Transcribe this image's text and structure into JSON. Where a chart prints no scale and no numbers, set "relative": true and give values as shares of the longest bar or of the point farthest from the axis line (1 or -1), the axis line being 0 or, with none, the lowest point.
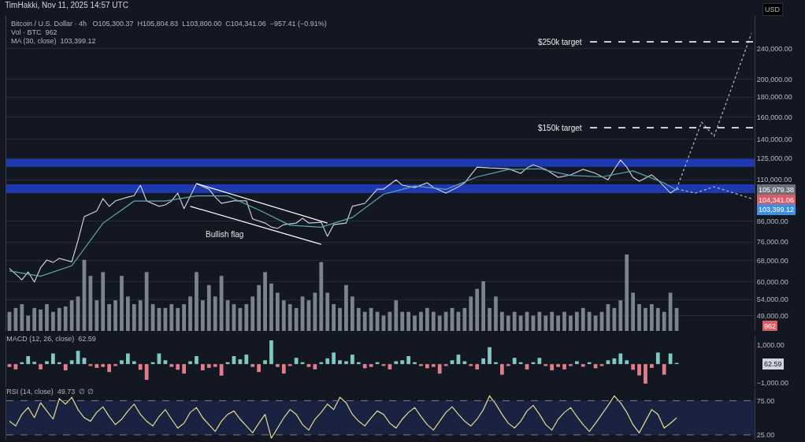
{
  "chart_data": [
    {
      "type": "line",
      "title": "TimHakki, Nov 11, 2025 14:57 UTC",
      "log": true,
      "grid": "y",
      "tick_labels": "y",
      "categories": [
        null,
        null,
        null,
        null,
        null,
        null,
        null,
        null,
        null,
        null,
        null,
        null,
        null,
        null,
        null,
        null,
        null,
        null,
        null,
        null,
        null,
        null,
        null,
        null,
        null,
        null,
        null,
        null,
        null,
        null,
        null,
        null,
        null,
        null,
        null,
        null,
        null,
        null,
        null,
        null,
        null,
        null,
        null,
        null,
        null,
        null,
        null,
        null,
        null,
        null,
        null,
        null,
        null,
        null,
        null,
        null,
        null,
        null,
        null,
        null,
        null,
        null,
        null,
        null,
        null,
        null,
        null,
        null,
        null,
        null,
        null,
        null,
        null,
        null,
        null,
        null,
        null,
        null,
        null,
        null,
        null,
        null,
        null,
        null,
        null,
        null,
        null,
        null,
        null,
        null,
        null,
        null,
        null,
        null,
        null,
        null,
        null,
        null,
        null,
        null,
        null,
        null,
        null,
        null,
        null,
        null,
        null,
        null,
        null,
        null,
        null,
        null,
        null,
        null,
        null,
        null,
        null,
        null,
        null,
        null
      ],
      "ylim": [
        44800,
        292000
      ],
      "yticks": [
        {
          "value": 49000,
          "label": "49,000.00"
        },
        {
          "value": 54000,
          "label": "54,000.00"
        },
        {
          "value": 60000,
          "label": "60,000.00"
        },
        {
          "value": 68000,
          "label": "68,000.00"
        },
        {
          "value": 76000,
          "label": "76,000.00"
        },
        {
          "value": 86000,
          "label": "86,000.00"
        },
        {
          "value": 110000,
          "label": "110,000.00"
        },
        {
          "value": 125000,
          "label": "125,000.00"
        },
        {
          "value": 140000,
          "label": "140,000.00"
        },
        {
          "value": 160000,
          "label": "160,000.00"
        },
        {
          "value": 180000,
          "label": "180,000.00"
        },
        {
          "value": 200000,
          "label": "200,000.00"
        },
        {
          "value": 240000,
          "label": "240,000.00"
        }
      ],
      "series": [
        {
          "color": "#c9ccd4",
          "values": [
            65000,
            null,
            60700,
            63600,
            59900,
            65200,
            68300,
            67300,
            69000,
            null,
            67600,
            76700,
            88400,
            null,
            91400,
            98400,
            94000,
            97100,
            null,
            99300,
            100200,
            106600,
            97100,
            null,
            94000,
            94800,
            97100,
            101700,
            92600,
            null,
            107600,
            null,
            104100,
            99300,
            95700,
            null,
            97100,
            null,
            97100,
            87200,
            null,
            85100,
            83100,
            82400,
            84300,
            null,
            85100,
            87600,
            85100,
            null,
            85500,
            78600,
            84300,
            null,
            85100,
            94000,
            null,
            95700,
            null,
            104100,
            104100,
            null,
            110000,
            106600,
            null,
            105100,
            null,
            108100,
            105100,
            null,
            101700,
            null,
            105600,
            108100,
            null,
            118700,
            null,
            118100,
            null,
            null,
            117600,
            null,
            114400,
            118100,
            120400,
            null,
            117100,
            null,
            111700,
            null,
            113300,
            null,
            117100,
            null,
            114400,
            null,
            110000,
            117100,
            123800,
            118700,
            111700,
            109100,
            null,
            113300,
            110000,
            null,
            101700,
            104300,
            null,
            null,
            null,
            null,
            null,
            null,
            null,
            null,
            null,
            null,
            null,
            null
          ]
        },
        {
          "color": "#5fa8b0",
          "values": [
            64000,
            null,
            null,
            null,
            null,
            62000,
            null,
            null,
            null,
            null,
            66000,
            null,
            null,
            null,
            null,
            85000,
            null,
            null,
            null,
            null,
            97000,
            null,
            null,
            null,
            null,
            97000,
            null,
            null,
            null,
            null,
            100000,
            null,
            null,
            null,
            null,
            100000,
            null,
            null,
            null,
            null,
            92000,
            null,
            null,
            null,
            null,
            84000,
            null,
            null,
            null,
            null,
            83000,
            null,
            null,
            null,
            null,
            88000,
            null,
            null,
            null,
            null,
            101000,
            null,
            null,
            null,
            null,
            106000,
            null,
            null,
            null,
            null,
            104000,
            null,
            null,
            null,
            null,
            112000,
            null,
            null,
            null,
            null,
            117000,
            null,
            null,
            null,
            null,
            117500,
            null,
            null,
            null,
            null,
            113000,
            null,
            null,
            null,
            null,
            112000,
            null,
            null,
            null,
            null,
            116000,
            null,
            null,
            null,
            null,
            108000,
            null,
            103400,
            null,
            null,
            null,
            null,
            null,
            null,
            null,
            null,
            null,
            null,
            null,
            null
          ]
        },
        {
          "color": "#ffffff",
          "values": [
            null,
            null,
            null,
            null,
            null,
            null,
            null,
            null,
            null,
            null,
            null,
            null,
            null,
            null,
            null,
            null,
            null,
            null,
            null,
            null,
            null,
            null,
            null,
            null,
            null,
            null,
            null,
            null,
            null,
            null,
            107600,
            null,
            null,
            null,
            null,
            null,
            null,
            null,
            null,
            null,
            null,
            null,
            null,
            null,
            null,
            null,
            null,
            null,
            null,
            null,
            null,
            85100,
            null,
            null,
            null,
            null,
            null,
            null,
            null,
            null,
            null,
            null,
            null,
            null,
            null,
            null,
            null,
            null,
            null,
            null,
            null,
            null,
            null,
            null,
            null,
            null,
            null,
            null,
            null,
            null,
            null,
            null,
            null,
            null,
            null,
            null,
            null,
            null,
            null,
            null,
            null,
            null,
            null,
            null,
            null,
            null,
            null,
            null,
            null,
            null,
            null,
            null,
            null,
            null,
            null,
            null,
            null,
            null,
            null,
            null,
            null,
            null,
            null,
            null,
            null,
            null,
            null,
            null,
            null,
            null
          ]
        },
        {
          "color": "#ffffff",
          "values": [
            null,
            null,
            null,
            null,
            null,
            null,
            null,
            null,
            null,
            null,
            null,
            null,
            null,
            null,
            null,
            null,
            null,
            null,
            null,
            null,
            null,
            null,
            null,
            null,
            null,
            null,
            null,
            null,
            null,
            94000,
            null,
            null,
            null,
            null,
            null,
            null,
            null,
            null,
            null,
            null,
            null,
            null,
            null,
            null,
            null,
            null,
            null,
            null,
            null,
            null,
            75000,
            null,
            null,
            null,
            null,
            null,
            null,
            null,
            null,
            null,
            null,
            null,
            null,
            null,
            null,
            null,
            null,
            null,
            null,
            null,
            null,
            null,
            null,
            null,
            null,
            null,
            null,
            null,
            null,
            null,
            null,
            null,
            null,
            null,
            null,
            null,
            null,
            null,
            null,
            null,
            null,
            null,
            null,
            null,
            null,
            null,
            null,
            null,
            null,
            null,
            null,
            null,
            null,
            null,
            null,
            null,
            null,
            null,
            null,
            null,
            null,
            null,
            null,
            null,
            null,
            null,
            null,
            null,
            null,
            null
          ]
        },
        {
          "color": "#b8bcc6",
          "line_style": "dotted",
          "values": [
            null,
            null,
            null,
            null,
            null,
            null,
            null,
            null,
            null,
            null,
            null,
            null,
            null,
            null,
            null,
            null,
            null,
            null,
            null,
            null,
            null,
            null,
            null,
            null,
            null,
            null,
            null,
            null,
            null,
            null,
            null,
            null,
            null,
            null,
            null,
            null,
            null,
            null,
            null,
            null,
            null,
            null,
            null,
            null,
            null,
            null,
            null,
            null,
            null,
            null,
            null,
            null,
            null,
            null,
            null,
            null,
            null,
            null,
            null,
            null,
            null,
            null,
            null,
            null,
            null,
            null,
            null,
            null,
            null,
            null,
            null,
            null,
            null,
            null,
            null,
            null,
            null,
            null,
            null,
            null,
            null,
            null,
            null,
            null,
            null,
            null,
            null,
            null,
            null,
            null,
            null,
            null,
            null,
            null,
            null,
            null,
            null,
            null,
            null,
            null,
            null,
            null,
            null,
            null,
            null,
            null,
            null,
            104300,
            null,
            null,
            null,
            155000,
            null,
            142600,
            null,
            null,
            null,
            null,
            null,
            263000
          ]
        },
        {
          "color": "#b8bcc6",
          "line_style": "dotted",
          "values": [
            null,
            null,
            null,
            null,
            null,
            null,
            null,
            null,
            null,
            null,
            null,
            null,
            null,
            null,
            null,
            null,
            null,
            null,
            null,
            null,
            null,
            null,
            null,
            null,
            null,
            null,
            null,
            null,
            null,
            null,
            null,
            null,
            null,
            null,
            null,
            null,
            null,
            null,
            null,
            null,
            null,
            null,
            null,
            null,
            null,
            null,
            null,
            null,
            null,
            null,
            null,
            null,
            null,
            null,
            null,
            null,
            null,
            null,
            null,
            null,
            null,
            null,
            null,
            null,
            null,
            null,
            null,
            null,
            null,
            null,
            null,
            null,
            null,
            null,
            null,
            null,
            null,
            null,
            null,
            null,
            null,
            null,
            null,
            null,
            null,
            null,
            null,
            null,
            null,
            null,
            null,
            null,
            null,
            null,
            null,
            null,
            null,
            null,
            null,
            null,
            null,
            null,
            null,
            null,
            null,
            null,
            null,
            104300,
            null,
            null,
            101700,
            null,
            null,
            105600,
            null,
            null,
            null,
            null,
            null,
            98400
          ]
        }
      ],
      "bands": [
        {
          "axis": "y",
          "from": 101700,
          "to": 107100,
          "color": "#2140c8"
        },
        {
          "axis": "y",
          "from": 118900,
          "to": 125200,
          "color": "#2140c8"
        }
      ],
      "ref_lines": [
        {
          "axis": "y",
          "value": 250000,
          "label": "$250k target",
          "color": "#e8e8e8",
          "line_style": "dashed"
        },
        {
          "axis": "y",
          "value": 150000,
          "label": "$150k target",
          "color": "#e8e8e8",
          "line_style": "dashed"
        }
      ],
      "annotations": [
        "Bitcoin / U.S. Dollar · 4h   O105,300.37  H105,804.83  L103,800.00  C104,341.06  −957.41 (−0.91%)",
        "Vol · BTC  962",
        "MA (30, close)  103,399.12",
        "USD",
        "Bullish flag",
        "105,979.38",
        "104,341.06",
        "103,399.12"
      ]
    },
    {
      "type": "bar",
      "relative": true,
      "tick_labels": false,
      "color": "#7d8290",
      "categories": [
        null,
        null,
        null,
        null,
        null,
        null,
        null,
        null,
        null,
        null,
        null,
        null,
        null,
        null,
        null,
        null,
        null,
        null,
        null,
        null,
        null,
        null,
        null,
        null,
        null,
        null,
        null,
        null,
        null,
        null,
        null,
        null,
        null,
        null,
        null,
        null,
        null,
        null,
        null,
        null,
        null,
        null,
        null,
        null,
        null,
        null,
        null,
        null,
        null,
        null,
        null,
        null,
        null,
        null,
        null,
        null,
        null,
        null,
        null,
        null,
        null,
        null,
        null,
        null,
        null,
        null,
        null,
        null,
        null,
        null,
        null,
        null,
        null,
        null,
        null,
        null,
        null,
        null,
        null,
        null,
        null,
        null,
        null,
        null,
        null,
        null,
        null,
        null,
        null,
        null,
        null,
        null,
        null,
        null,
        null,
        null,
        null,
        null,
        null,
        null,
        null,
        null,
        null,
        null,
        null,
        null,
        null,
        null,
        null,
        null,
        null,
        null,
        null,
        null,
        null,
        null,
        null,
        null,
        null,
        null
      ],
      "values": [
        0.25,
        0.3,
        0.35,
        0.2,
        0.3,
        0.28,
        0.35,
        0.25,
        0.3,
        0.32,
        0.4,
        0.45,
        0.93,
        0.72,
        0.4,
        0.77,
        0.35,
        0.4,
        0.72,
        0.45,
        0.35,
        0.4,
        0.77,
        0.35,
        0.3,
        0.3,
        0.35,
        0.3,
        0.35,
        0.45,
        0.77,
        0.4,
        0.6,
        0.45,
        0.72,
        0.4,
        0.35,
        0.3,
        0.35,
        0.45,
        0.6,
        0.77,
        0.62,
        0.5,
        0.4,
        0.35,
        0.3,
        0.45,
        0.4,
        0.5,
        0.9,
        0.5,
        0.35,
        0.3,
        0.6,
        0.45,
        0.3,
        0.25,
        0.3,
        0.25,
        0.2,
        0.25,
        0.4,
        0.25,
        0.25,
        0.2,
        0.25,
        0.3,
        0.25,
        0.2,
        0.25,
        0.3,
        0.25,
        0.3,
        0.45,
        0.55,
        0.65,
        0.3,
        0.45,
        0.25,
        0.2,
        0.25,
        0.2,
        0.25,
        0.2,
        0.25,
        0.2,
        0.25,
        0.2,
        0.25,
        0.2,
        0.25,
        0.3,
        0.25,
        0.2,
        0.25,
        0.35,
        0.3,
        0.4,
        1.0,
        0.5,
        0.35,
        0.3,
        0.35,
        0.3,
        0.25,
        0.5,
        0.3,
        null,
        null,
        null,
        null,
        null,
        null,
        null,
        null,
        null,
        null,
        null,
        null
      ],
      "annotations": [
        "962"
      ]
    },
    {
      "type": "bar",
      "title": "MACD (12, 26, close)  62.59",
      "tick_labels": "y",
      "categories": [
        null,
        null,
        null,
        null,
        null,
        null,
        null,
        null,
        null,
        null,
        null,
        null,
        null,
        null,
        null,
        null,
        null,
        null,
        null,
        null,
        null,
        null,
        null,
        null,
        null,
        null,
        null,
        null,
        null,
        null,
        null,
        null,
        null,
        null,
        null,
        null,
        null,
        null,
        null,
        null,
        null,
        null,
        null,
        null,
        null,
        null,
        null,
        null,
        null,
        null,
        null,
        null,
        null,
        null,
        null,
        null,
        null,
        null,
        null,
        null,
        null,
        null,
        null,
        null,
        null,
        null,
        null,
        null,
        null,
        null,
        null,
        null,
        null,
        null,
        null,
        null,
        null,
        null,
        null,
        null,
        null,
        null,
        null,
        null,
        null,
        null,
        null,
        null,
        null,
        null,
        null,
        null,
        null,
        null,
        null,
        null,
        null,
        null,
        null,
        null,
        null,
        null,
        null,
        null,
        null,
        null,
        null,
        null,
        null,
        null,
        null,
        null,
        null,
        null,
        null,
        null,
        null,
        null,
        null,
        null
      ],
      "ylim": [
        -1200,
        1500
      ],
      "yticks": [
        {
          "value": 1000,
          "label": "1,000.00"
        },
        {
          "value": -1000,
          "label": "−1,000.00"
        }
      ],
      "values": [
        -150,
        -280,
        100,
        420,
        120,
        -280,
        150,
        560,
        100,
        -330,
        200,
        700,
        330,
        -100,
        -200,
        -150,
        -420,
        -100,
        200,
        560,
        150,
        -300,
        -830,
        100,
        560,
        200,
        -150,
        -300,
        -500,
        150,
        420,
        -330,
        -200,
        -150,
        -610,
        100,
        420,
        250,
        500,
        -150,
        -420,
        200,
        1250,
        -150,
        -500,
        -100,
        330,
        100,
        -150,
        -280,
        100,
        300,
        610,
        200,
        150,
        500,
        100,
        -220,
        -150,
        100,
        -100,
        -280,
        150,
        200,
        420,
        100,
        -100,
        -220,
        -150,
        -500,
        -100,
        200,
        500,
        150,
        -100,
        -280,
        300,
        890,
        100,
        -560,
        -100,
        330,
        100,
        -280,
        100,
        330,
        -100,
        -330,
        -150,
        -280,
        -100,
        150,
        -140,
        100,
        -220,
        -100,
        200,
        300,
        560,
        200,
        -300,
        -600,
        -1030,
        -200,
        610,
        -560,
        560,
        62.59,
        null,
        null,
        null,
        null,
        null,
        null,
        null,
        null,
        null,
        null,
        null,
        null
      ],
      "colors": [
        "#e37d8a",
        "#e37d8a",
        "#7fc8c4",
        "#7fc8c4",
        "#7fc8c4",
        "#e37d8a",
        "#7fc8c4",
        "#7fc8c4",
        "#7fc8c4",
        "#e37d8a",
        "#7fc8c4",
        "#7fc8c4",
        "#7fc8c4",
        "#e37d8a",
        "#e37d8a",
        "#e37d8a",
        "#e37d8a",
        "#e37d8a",
        "#7fc8c4",
        "#7fc8c4",
        "#7fc8c4",
        "#e37d8a",
        "#e37d8a",
        "#7fc8c4",
        "#7fc8c4",
        "#7fc8c4",
        "#e37d8a",
        "#e37d8a",
        "#e37d8a",
        "#7fc8c4",
        "#7fc8c4",
        "#e37d8a",
        "#e37d8a",
        "#e37d8a",
        "#e37d8a",
        "#7fc8c4",
        "#7fc8c4",
        "#7fc8c4",
        "#7fc8c4",
        "#e37d8a",
        "#e37d8a",
        "#7fc8c4",
        "#7fc8c4",
        "#e37d8a",
        "#e37d8a",
        "#e37d8a",
        "#7fc8c4",
        "#7fc8c4",
        "#e37d8a",
        "#e37d8a",
        "#7fc8c4",
        "#7fc8c4",
        "#7fc8c4",
        "#7fc8c4",
        "#7fc8c4",
        "#7fc8c4",
        "#7fc8c4",
        "#e37d8a",
        "#e37d8a",
        "#7fc8c4",
        "#e37d8a",
        "#e37d8a",
        "#7fc8c4",
        "#7fc8c4",
        "#7fc8c4",
        "#7fc8c4",
        "#e37d8a",
        "#e37d8a",
        "#e37d8a",
        "#e37d8a",
        "#e37d8a",
        "#7fc8c4",
        "#7fc8c4",
        "#7fc8c4",
        "#e37d8a",
        "#e37d8a",
        "#7fc8c4",
        "#7fc8c4",
        "#7fc8c4",
        "#e37d8a",
        "#e37d8a",
        "#7fc8c4",
        "#7fc8c4",
        "#e37d8a",
        "#7fc8c4",
        "#7fc8c4",
        "#e37d8a",
        "#e37d8a",
        "#e37d8a",
        "#e37d8a",
        "#e37d8a",
        "#7fc8c4",
        "#e37d8a",
        "#7fc8c4",
        "#e37d8a",
        "#e37d8a",
        "#7fc8c4",
        "#7fc8c4",
        "#7fc8c4",
        "#7fc8c4",
        "#e37d8a",
        "#e37d8a",
        "#e37d8a",
        "#e37d8a",
        "#7fc8c4",
        "#e37d8a",
        "#7fc8c4",
        "#7fc8c4",
        "#7fc8c4",
        "#7fc8c4",
        "#7fc8c4",
        "#7fc8c4",
        "#7fc8c4",
        "#7fc8c4",
        "#7fc8c4",
        "#7fc8c4",
        "#7fc8c4",
        "#7fc8c4",
        "#7fc8c4",
        "#7fc8c4"
      ],
      "annotations": [
        "62.59"
      ]
    },
    {
      "type": "line",
      "title": "RSI (14, close)  49.73  ∅ ∅",
      "tick_labels": "y",
      "color": "#e6dc8c",
      "categories": [
        null,
        null,
        null,
        null,
        null,
        null,
        null,
        null,
        null,
        null,
        null,
        null,
        null,
        null,
        null,
        null,
        null,
        null,
        null,
        null,
        null,
        null,
        null,
        null,
        null,
        null,
        null,
        null,
        null,
        null,
        null,
        null,
        null,
        null,
        null,
        null,
        null,
        null,
        null,
        null,
        null,
        null,
        null,
        null,
        null,
        null,
        null,
        null,
        null,
        null,
        null,
        null,
        null,
        null,
        null,
        null,
        null,
        null,
        null,
        null,
        null,
        null,
        null,
        null,
        null,
        null,
        null,
        null,
        null,
        null,
        null,
        null,
        null,
        null,
        null,
        null,
        null,
        null,
        null,
        null,
        null,
        null,
        null,
        null,
        null,
        null,
        null,
        null,
        null,
        null,
        null,
        null,
        null,
        null,
        null,
        null,
        null,
        null,
        null,
        null,
        null,
        null,
        null,
        null,
        null,
        null,
        null,
        null,
        null,
        null,
        null,
        null,
        null,
        null,
        null,
        null,
        null,
        null,
        null,
        null
      ],
      "ylim": [
        18,
        93
      ],
      "yticks": [
        {
          "value": 75,
          "label": "75.00"
        },
        {
          "value": 25,
          "label": "25.00"
        }
      ],
      "values": [
        45,
        38,
        55,
        65,
        50,
        72,
        60,
        48,
        78,
        70,
        80,
        62,
        50,
        45,
        58,
        66,
        52,
        40,
        48,
        60,
        70,
        55,
        45,
        38,
        52,
        62,
        48,
        35,
        42,
        58,
        65,
        50,
        40,
        30,
        45,
        55,
        60,
        48,
        38,
        28,
        42,
        55,
        20,
        35,
        50,
        62,
        55,
        40,
        32,
        48,
        58,
        70,
        62,
        80,
        72,
        55,
        45,
        38,
        50,
        60,
        55,
        42,
        35,
        48,
        58,
        65,
        52,
        40,
        32,
        45,
        58,
        66,
        55,
        45,
        38,
        48,
        62,
        82,
        70,
        55,
        42,
        35,
        45,
        60,
        68,
        55,
        40,
        32,
        48,
        58,
        65,
        52,
        40,
        30,
        42,
        55,
        68,
        82,
        72,
        58,
        40,
        28,
        45,
        62,
        55,
        35,
        42,
        50,
        null,
        null,
        null,
        null,
        null,
        null,
        null,
        null,
        null,
        null,
        null,
        null
      ],
      "bands": [
        {
          "axis": "y",
          "from": 25,
          "to": 75,
          "color": "#1c2447"
        }
      ],
      "ref_lines": [
        {
          "axis": "y",
          "value": 75,
          "color": "#787b86",
          "line_style": "dashed"
        },
        {
          "axis": "y",
          "value": 25,
          "color": "#787b86",
          "line_style": "dashed"
        }
      ]
    }
  ]
}
